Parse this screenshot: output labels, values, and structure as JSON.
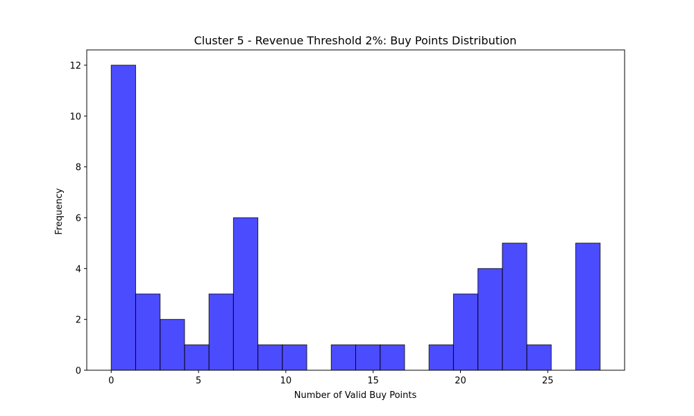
{
  "chart_data": {
    "type": "histogram",
    "title": "Cluster 5 - Revenue Threshold 2%: Buy Points Distribution",
    "xlabel": "Number of Valid Buy Points",
    "ylabel": "Frequency",
    "xlim": [
      -1.4,
      29.4
    ],
    "ylim": [
      0,
      12.6
    ],
    "x_ticks": [
      0,
      5,
      10,
      15,
      20,
      25
    ],
    "y_ticks": [
      0,
      2,
      4,
      6,
      8,
      10,
      12
    ],
    "bin_start": 0,
    "bin_width": 1.4,
    "counts": [
      12,
      3,
      2,
      1,
      3,
      6,
      1,
      1,
      0,
      1,
      1,
      1,
      0,
      1,
      3,
      4,
      5,
      1,
      0,
      5
    ],
    "bar_color": "#0000ff",
    "bar_opacity": 0.7,
    "edge_color": "#000000",
    "grid": false
  }
}
